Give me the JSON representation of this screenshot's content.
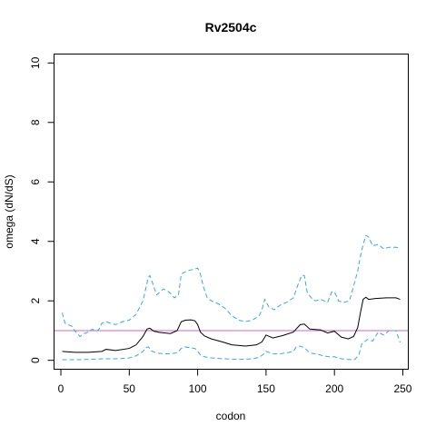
{
  "chart_data": {
    "type": "line",
    "title": "Rv2504c",
    "xlabel": "codon",
    "ylabel": "omega (dN/dS)",
    "xlim": [
      -5,
      254
    ],
    "ylim": [
      -0.3,
      10.3
    ],
    "xticks": [
      0,
      50,
      100,
      150,
      200,
      250
    ],
    "yticks": [
      0,
      2,
      4,
      6,
      8,
      10
    ],
    "grid": false,
    "reference_line": {
      "y": 1,
      "color": "#cc66cc"
    },
    "series": [
      {
        "style": "solid",
        "color": "#000000",
        "x": [
          1,
          10,
          20,
          30,
          33,
          40,
          50,
          55,
          60,
          63,
          65,
          68,
          72,
          80,
          85,
          88,
          91,
          95,
          98,
          100,
          102,
          105,
          110,
          118,
          125,
          135,
          143,
          147,
          150,
          155,
          162,
          170,
          175,
          178,
          182,
          190,
          195,
          200,
          205,
          210,
          214,
          217,
          219,
          221,
          223,
          225,
          230,
          238,
          245,
          248
        ],
        "y": [
          0.3,
          0.27,
          0.27,
          0.3,
          0.37,
          0.33,
          0.4,
          0.52,
          0.8,
          1.05,
          1.08,
          0.98,
          0.94,
          0.9,
          1.0,
          1.3,
          1.35,
          1.36,
          1.33,
          1.2,
          0.95,
          0.82,
          0.72,
          0.62,
          0.52,
          0.48,
          0.52,
          0.62,
          0.85,
          0.75,
          0.83,
          0.95,
          1.2,
          1.22,
          1.05,
          1.02,
          0.92,
          0.98,
          0.78,
          0.72,
          0.8,
          1.1,
          1.6,
          2.05,
          2.12,
          2.05,
          2.08,
          2.1,
          2.1,
          2.05
        ]
      },
      {
        "style": "dashed",
        "color": "#3ba7e0",
        "x": [
          1,
          3,
          5,
          8,
          10,
          14,
          17,
          20,
          23,
          26,
          28,
          30,
          33,
          36,
          40,
          45,
          50,
          55,
          60,
          62,
          64,
          65,
          67,
          70,
          75,
          79,
          83,
          86,
          88,
          92,
          96,
          100,
          102,
          104,
          107,
          110,
          115,
          120,
          125,
          130,
          135,
          140,
          145,
          147,
          149,
          152,
          156,
          160,
          165,
          170,
          173,
          176,
          178,
          180,
          183,
          186,
          190,
          195,
          198,
          200,
          203,
          207,
          211,
          214,
          217,
          219,
          221,
          223,
          225,
          228,
          232,
          236,
          240,
          245,
          248
        ],
        "y": [
          1.6,
          1.25,
          1.2,
          1.15,
          1.0,
          0.8,
          0.9,
          0.95,
          1.05,
          0.98,
          1.05,
          1.25,
          1.3,
          1.25,
          1.2,
          1.3,
          1.35,
          1.55,
          2.0,
          2.4,
          2.8,
          2.85,
          2.6,
          2.2,
          2.4,
          2.3,
          2.1,
          2.2,
          2.9,
          3.0,
          3.05,
          3.1,
          2.9,
          2.5,
          2.1,
          2.0,
          1.9,
          1.75,
          1.5,
          1.35,
          1.3,
          1.35,
          1.5,
          1.7,
          2.05,
          1.8,
          1.7,
          1.85,
          1.95,
          2.1,
          2.5,
          2.85,
          2.85,
          2.3,
          2.1,
          2.0,
          2.05,
          1.95,
          2.3,
          2.3,
          2.0,
          1.95,
          2.0,
          2.5,
          3.0,
          3.5,
          3.9,
          4.2,
          4.15,
          3.85,
          3.9,
          3.75,
          3.8,
          3.8,
          3.78
        ]
      },
      {
        "style": "dashed",
        "color": "#3ba7e0",
        "x": [
          1,
          10,
          20,
          30,
          40,
          50,
          55,
          60,
          62,
          64,
          66,
          70,
          75,
          80,
          85,
          88,
          91,
          95,
          98,
          100,
          102,
          105,
          110,
          120,
          130,
          140,
          145,
          148,
          150,
          155,
          160,
          165,
          170,
          172,
          175,
          178,
          182,
          188,
          192,
          196,
          200,
          205,
          210,
          215,
          218,
          220,
          224,
          228,
          232,
          236,
          240,
          245,
          248
        ],
        "y": [
          0.02,
          0.02,
          0.03,
          0.05,
          0.05,
          0.08,
          0.15,
          0.3,
          0.42,
          0.45,
          0.32,
          0.25,
          0.22,
          0.22,
          0.25,
          0.4,
          0.45,
          0.42,
          0.4,
          0.3,
          0.18,
          0.12,
          0.08,
          0.05,
          0.03,
          0.05,
          0.1,
          0.2,
          0.3,
          0.22,
          0.22,
          0.25,
          0.3,
          0.45,
          0.48,
          0.42,
          0.25,
          0.2,
          0.15,
          0.12,
          0.12,
          0.05,
          0.03,
          0.03,
          0.2,
          0.55,
          0.7,
          0.65,
          0.95,
          0.85,
          1.0,
          1.0,
          0.6
        ]
      }
    ]
  }
}
